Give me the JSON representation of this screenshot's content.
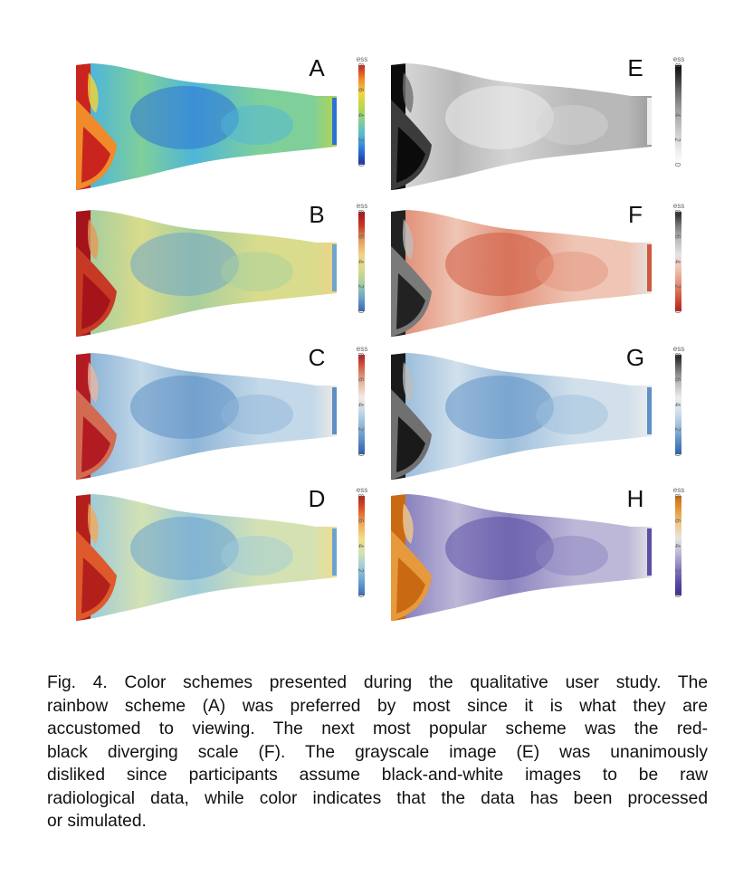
{
  "figure": {
    "panels": [
      {
        "label": "A",
        "scheme": "rainbow",
        "colorbar_title": "ess",
        "ticks": [
          "0",
          "2",
          "4",
          "6",
          "8"
        ],
        "stops": [
          "#1d2f9a",
          "#2b72d6",
          "#4fb6d8",
          "#7fcf9a",
          "#b7d64d",
          "#f2d43a",
          "#f08a2a",
          "#c9241e"
        ]
      },
      {
        "label": "B",
        "scheme": "blue-green-yellow-red",
        "colorbar_title": "ess",
        "ticks": [
          "0",
          "2",
          "4",
          "6",
          "8"
        ],
        "stops": [
          "#3a66b0",
          "#6fa6c9",
          "#a8cf9e",
          "#d9dc8c",
          "#f0d28a",
          "#e49a5a",
          "#c63a25",
          "#a5141a"
        ]
      },
      {
        "label": "C",
        "scheme": "blue-white-red diverging",
        "colorbar_title": "ess",
        "ticks": [
          "0",
          "2",
          "4",
          "6",
          "8"
        ],
        "stops": [
          "#2f5fa6",
          "#5d8fc4",
          "#8fb6d8",
          "#c3d8e8",
          "#f2ece6",
          "#e8b7a0",
          "#d36a52",
          "#b31b22"
        ]
      },
      {
        "label": "D",
        "scheme": "blue-yellow-red",
        "colorbar_title": "ess",
        "ticks": [
          "0",
          "2",
          "4",
          "6",
          "8"
        ],
        "stops": [
          "#3a6fb6",
          "#6aa3cf",
          "#9fcbd9",
          "#d4e2b3",
          "#f3dc8a",
          "#f2a95a",
          "#de5a2c",
          "#b3201c"
        ]
      },
      {
        "label": "E",
        "scheme": "grayscale",
        "colorbar_title": "ess",
        "ticks": [
          "0",
          "2",
          "4",
          "6",
          "8"
        ],
        "stops": [
          "#ffffff",
          "#ededed",
          "#d4d4d4",
          "#b8b8b8",
          "#9a9a9a",
          "#707070",
          "#3c3c3c",
          "#0b0b0b"
        ]
      },
      {
        "label": "F",
        "scheme": "red-black diverging",
        "colorbar_title": "ess",
        "ticks": [
          "0",
          "2",
          "4",
          "6",
          "8"
        ],
        "stops": [
          "#b3201c",
          "#cf5a3f",
          "#e3937b",
          "#efc5b5",
          "#e6e3e2",
          "#bdbdbd",
          "#7a7a7a",
          "#222222"
        ]
      },
      {
        "label": "G",
        "scheme": "blue-white-black",
        "colorbar_title": "ess",
        "ticks": [
          "0",
          "2",
          "4",
          "6",
          "8"
        ],
        "stops": [
          "#2c62a8",
          "#5e91c6",
          "#9dbfdc",
          "#d2e0ec",
          "#ececec",
          "#bdbdbd",
          "#707070",
          "#1a1a1a"
        ]
      },
      {
        "label": "H",
        "scheme": "purple-orange",
        "colorbar_title": "ess",
        "ticks": [
          "0",
          "2",
          "4",
          "6",
          "8"
        ],
        "stops": [
          "#3a2f8a",
          "#5b4fa6",
          "#8b83bf",
          "#bdb8d8",
          "#e8e3e3",
          "#f0c98d",
          "#e69a3d",
          "#c96a12"
        ]
      }
    ]
  },
  "caption": {
    "lines": [
      "Fig. 4.  Color schemes presented during the qualitative user study.  The",
      "rainbow scheme (A) was preferred by most since it is what they are",
      "accustomed to viewing.  The next most popular scheme was the red-",
      "black diverging scale (F). The grayscale image (E) was unanimously",
      "disliked since participants assume black-and-white images to be raw",
      "radiological data, while color indicates that the data has been processed",
      "or simulated."
    ]
  }
}
